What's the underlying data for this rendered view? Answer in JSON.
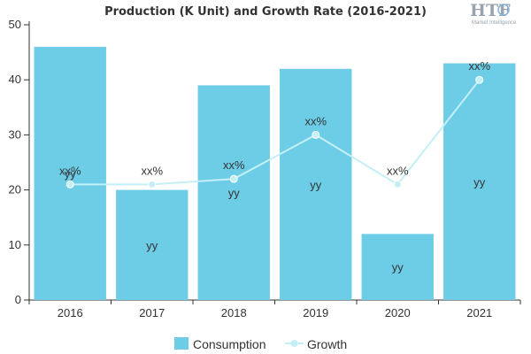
{
  "chart_data": {
    "type": "bar",
    "title": "Production (K Unit) and Growth Rate (2016-2021)",
    "categories": [
      "2016",
      "2017",
      "2018",
      "2019",
      "2020",
      "2021"
    ],
    "ylim": [
      0,
      50
    ],
    "yticks": [
      "0",
      "10",
      "20",
      "30",
      "40",
      "50"
    ],
    "grid": false,
    "legend_position": "bottom",
    "series": [
      {
        "name": "Consumption",
        "type": "bar",
        "color": "#6dcde6",
        "values": [
          46,
          20,
          39,
          42,
          12,
          43
        ],
        "labels": [
          "yy",
          "yy",
          "yy",
          "yy",
          "yy",
          "yy"
        ]
      },
      {
        "name": "Growth",
        "type": "line",
        "color": "#c4f0f5",
        "values": [
          21,
          21,
          22,
          30,
          21,
          40
        ],
        "labels": [
          "xx%",
          "xx%",
          "xx%",
          "xx%",
          "xx%",
          "xx%"
        ]
      }
    ]
  },
  "logo": {
    "text": "HTF",
    "subtext": "Market Intelligence"
  }
}
